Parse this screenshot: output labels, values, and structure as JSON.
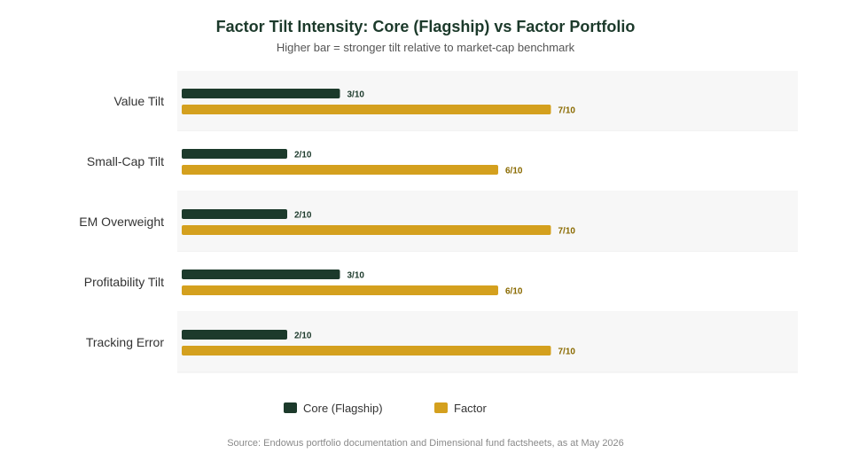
{
  "chart_data": {
    "type": "bar",
    "orientation": "horizontal",
    "title": "Factor Tilt Intensity: Core (Flagship) vs Factor Portfolio",
    "subtitle": "Higher bar = stronger tilt relative to market-cap benchmark",
    "categories": [
      "Value Tilt",
      "Small-Cap Tilt",
      "EM Overweight",
      "Profitability Tilt",
      "Tracking Error"
    ],
    "series": [
      {
        "name": "Core (Flagship)",
        "color": "#1c3a2b",
        "values": [
          3,
          2,
          2,
          3,
          2
        ],
        "labels": [
          "3/10",
          "2/10",
          "2/10",
          "3/10",
          "2/10"
        ]
      },
      {
        "name": "Factor",
        "color": "#d4a01e",
        "values": [
          7,
          6,
          7,
          6,
          7
        ],
        "labels": [
          "7/10",
          "6/10",
          "7/10",
          "6/10",
          "7/10"
        ]
      }
    ],
    "xlim": [
      0,
      10
    ],
    "grid": false,
    "legend_position": "bottom",
    "colors": {
      "band_alt": "#f7f7f7",
      "band_border": "#ececec",
      "factor_label": "#8a6a00"
    }
  },
  "source": "Source: Endowus portfolio documentation and Dimensional fund factsheets, as at May 2026"
}
